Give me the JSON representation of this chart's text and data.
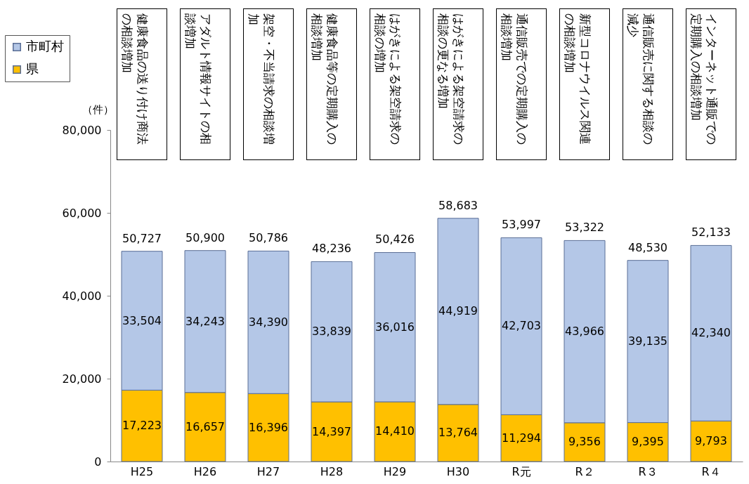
{
  "chart_data": {
    "type": "bar",
    "stacked": true,
    "ylabel": "（件）",
    "categories": [
      "H25",
      "H26",
      "H27",
      "H28",
      "H29",
      "H30",
      "R元",
      "R２",
      "R３",
      "R４"
    ],
    "series": [
      {
        "name": "県",
        "color": "#ffc000",
        "values": [
          17223,
          16657,
          16396,
          14397,
          14410,
          13764,
          11294,
          9356,
          9395,
          9793
        ],
        "value_labels": [
          "17,223",
          "16,657",
          "16,396",
          "14,397",
          "14,410",
          "13,764",
          "11,294",
          "9,356",
          "9,395",
          "9,793"
        ]
      },
      {
        "name": "市町村",
        "color": "#b4c7e7",
        "values": [
          33504,
          34243,
          34390,
          33839,
          36016,
          44919,
          42703,
          43966,
          39135,
          42340
        ],
        "value_labels": [
          "33,504",
          "34,243",
          "34,390",
          "33,839",
          "36,016",
          "44,919",
          "42,703",
          "43,966",
          "39,135",
          "42,340"
        ]
      }
    ],
    "totals": [
      "50,727",
      "50,900",
      "50,786",
      "48,236",
      "50,426",
      "58,683",
      "53,997",
      "53,322",
      "48,530",
      "52,133"
    ],
    "data_labels": true,
    "ylim": [
      0,
      80000
    ],
    "yticks": [
      0,
      {
        "value": 20000,
        "label": "20,000"
      },
      {
        "value": 40000,
        "label": "40,000"
      },
      {
        "value": 60000,
        "label": "60,000"
      },
      {
        "value": 80000,
        "label": "80,000"
      }
    ],
    "grid": false,
    "legend": "top left",
    "annotations": [
      "健康食品の送り付け商法の相談増加",
      "アダルト情報サイトの相談増加",
      "架空・不当請求の相談増加",
      "健康食品等の定期購入の相談増加",
      "はがきによる架空請求の相談の増加",
      "はがきによる架空請求の相談の更なる増加",
      "通信販売での定期購入の相談増加",
      "新型コロナウイルス関連の相談増加",
      "通信販売に関する相談の減少",
      "インターネット通販での定期購入の相談増加"
    ]
  }
}
